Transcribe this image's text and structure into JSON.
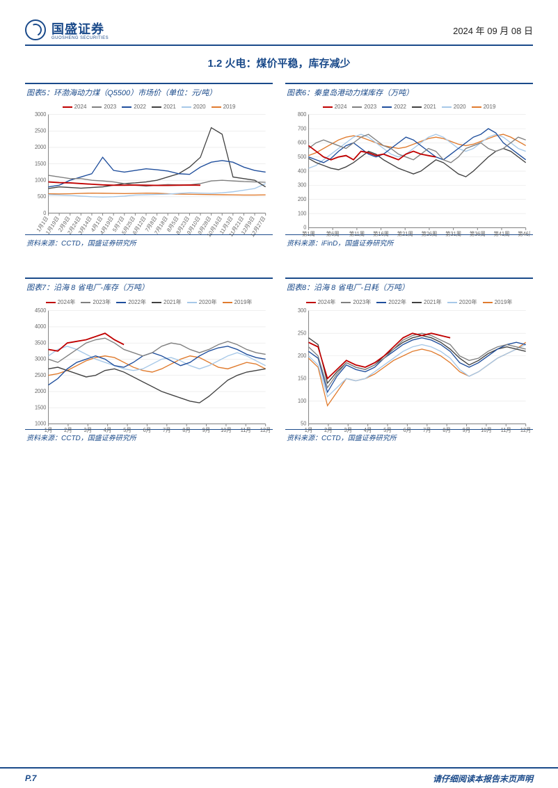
{
  "header": {
    "company_cn": "国盛证券",
    "company_en": "GUOSHENG SECURITIES",
    "date": "2024 年 09 月 08 日"
  },
  "section_title": "1.2 火电：煤价平稳，库存减少",
  "legend_years": [
    "2024",
    "2023",
    "2022",
    "2021",
    "2020",
    "2019"
  ],
  "legend_years_suffixed": [
    "2024年",
    "2023年",
    "2022年",
    "2021年",
    "2020年",
    "2019年"
  ],
  "series_colors": {
    "2024": "#c00000",
    "2023": "#7f7f7f",
    "2022": "#1f4e9c",
    "2021": "#404040",
    "2020": "#a6c8e8",
    "2019": "#e07b2e"
  },
  "charts": [
    {
      "id": "chart5",
      "title": "图表5：环渤海动力煤（Q5500）市场价（单位：元/吨）",
      "source": "资料来源：CCTD，国盛证券研究所",
      "type": "line",
      "ylim": [
        0,
        3000
      ],
      "ytick_step": 500,
      "x_labels": [
        "1月1日",
        "1月19日",
        "2月9日",
        "2月24日",
        "3月14日",
        "4月1日",
        "4月19日",
        "5月7日",
        "5月25日",
        "6月12日",
        "7月8日",
        "7月18日",
        "8月5日",
        "8月23日",
        "9月10日",
        "9月28日",
        "10月16日",
        "11月3日",
        "11月21日",
        "12月9日",
        "12月27日"
      ],
      "rotate_x": true,
      "series": {
        "2024": [
          950,
          930,
          920,
          900,
          880,
          860,
          850,
          850,
          855,
          850,
          845,
          845,
          850,
          855,
          850,
          null,
          null,
          null,
          null,
          null,
          null
        ],
        "2023": [
          1150,
          1100,
          1050,
          1050,
          1000,
          980,
          950,
          900,
          850,
          820,
          850,
          870,
          860,
          860,
          900,
          980,
          1000,
          980,
          960,
          950,
          940
        ],
        "2022": [
          800,
          850,
          1000,
          1100,
          1200,
          1700,
          1300,
          1250,
          1300,
          1350,
          1320,
          1280,
          1200,
          1180,
          1400,
          1550,
          1600,
          1550,
          1400,
          1300,
          1250
        ],
        "2021": [
          750,
          800,
          780,
          760,
          780,
          800,
          850,
          900,
          920,
          950,
          1000,
          1100,
          1200,
          1400,
          1700,
          2600,
          2400,
          1100,
          1050,
          1000,
          800
        ],
        "2020": [
          560,
          550,
          540,
          520,
          500,
          490,
          500,
          520,
          550,
          560,
          570,
          580,
          600,
          620,
          610,
          600,
          620,
          650,
          700,
          750,
          900
        ],
        "2019": [
          590,
          585,
          590,
          600,
          610,
          605,
          600,
          595,
          600,
          610,
          605,
          590,
          580,
          575,
          570,
          565,
          560,
          555,
          550,
          550,
          555
        ]
      }
    },
    {
      "id": "chart6",
      "title": "图表6：秦皇岛港动力煤库存（万吨）",
      "source": "资料来源：iFinD，国盛证券研究所",
      "type": "line",
      "ylim": [
        0,
        800
      ],
      "ytick_step": 100,
      "x_labels": [
        "第1周",
        "第6周",
        "第11周",
        "第16周",
        "第21周",
        "第26周",
        "第31周",
        "第36周",
        "第41周",
        "第46周"
      ],
      "rotate_x": false,
      "series": {
        "2024": [
          580,
          540,
          500,
          480,
          500,
          510,
          480,
          540,
          530,
          510,
          520,
          500,
          480,
          520,
          540,
          520,
          510,
          500,
          null,
          null,
          null,
          null,
          null,
          null,
          null,
          null,
          null,
          null,
          null,
          null
        ],
        "2023": [
          560,
          600,
          620,
          600,
          580,
          560,
          600,
          640,
          660,
          620,
          580,
          560,
          520,
          500,
          480,
          520,
          560,
          540,
          480,
          460,
          500,
          560,
          580,
          600,
          560,
          540,
          560,
          600,
          640,
          620
        ],
        "2022": [
          500,
          480,
          460,
          490,
          540,
          580,
          600,
          560,
          520,
          500,
          520,
          560,
          600,
          640,
          620,
          580,
          540,
          500,
          480,
          520,
          560,
          600,
          640,
          660,
          700,
          670,
          600,
          560,
          520,
          480
        ],
        "2021": [
          490,
          460,
          440,
          420,
          410,
          430,
          460,
          500,
          540,
          520,
          480,
          450,
          420,
          400,
          380,
          400,
          440,
          480,
          460,
          420,
          380,
          360,
          400,
          450,
          500,
          540,
          560,
          540,
          500,
          460
        ],
        "2020": [
          420,
          440,
          480,
          520,
          560,
          600,
          640,
          660,
          640,
          600,
          560,
          520,
          500,
          520,
          560,
          600,
          640,
          660,
          640,
          600,
          560,
          540,
          560,
          600,
          640,
          660,
          640,
          600,
          560,
          540
        ],
        "2019": [
          510,
          530,
          560,
          590,
          620,
          640,
          650,
          640,
          620,
          600,
          580,
          570,
          560,
          570,
          590,
          610,
          630,
          640,
          630,
          610,
          590,
          580,
          590,
          610,
          630,
          650,
          660,
          640,
          610,
          580
        ]
      }
    },
    {
      "id": "chart7",
      "title": "图表7：沿海 8 省电厂-库存（万吨）",
      "source": "资料来源：CCTD，国盛证券研究所",
      "type": "line",
      "ylim": [
        1000,
        4500
      ],
      "ytick_step": 500,
      "x_labels": [
        "1月",
        "2月",
        "3月",
        "4月",
        "5月",
        "6月",
        "7月",
        "8月",
        "9月",
        "10月",
        "11月",
        "12月"
      ],
      "rotate_x": false,
      "series": {
        "2024年": [
          3300,
          3250,
          3500,
          3550,
          3600,
          3700,
          3800,
          3600,
          3450,
          null,
          null,
          null,
          null,
          null,
          null,
          null,
          null,
          null,
          null,
          null,
          null,
          null,
          null,
          null
        ],
        "2023年": [
          3000,
          2900,
          3100,
          3300,
          3500,
          3600,
          3650,
          3500,
          3300,
          3200,
          3100,
          3200,
          3400,
          3500,
          3450,
          3300,
          3200,
          3300,
          3450,
          3550,
          3450,
          3300,
          3200,
          3150
        ],
        "2022年": [
          2200,
          2400,
          2700,
          2900,
          3000,
          3100,
          3000,
          2800,
          2750,
          2900,
          3100,
          3200,
          3100,
          2950,
          2800,
          2900,
          3100,
          3250,
          3350,
          3400,
          3300,
          3150,
          3050,
          3000
        ],
        "2021年": [
          2700,
          2750,
          2650,
          2550,
          2450,
          2500,
          2650,
          2700,
          2600,
          2450,
          2300,
          2150,
          2000,
          1900,
          1800,
          1700,
          1650,
          1850,
          2100,
          2350,
          2500,
          2600,
          2650,
          2700
        ],
        "2020年": [
          3100,
          3300,
          3400,
          3300,
          3150,
          3000,
          2900,
          2800,
          2700,
          2650,
          2700,
          2850,
          3000,
          3050,
          2950,
          2800,
          2700,
          2800,
          2950,
          3100,
          3200,
          3100,
          2950,
          2800
        ],
        "2019年": [
          2500,
          2550,
          2650,
          2800,
          2950,
          3050,
          3100,
          3050,
          2900,
          2750,
          2650,
          2600,
          2700,
          2850,
          3000,
          3100,
          3050,
          2900,
          2750,
          2700,
          2800,
          2900,
          2850,
          2700
        ]
      }
    },
    {
      "id": "chart8",
      "title": "图表8：沿海 8 省电厂-日耗（万吨）",
      "source": "资料来源：CCTD，国盛证券研究所",
      "type": "line",
      "ylim": [
        50,
        300
      ],
      "ytick_step": 50,
      "x_labels": [
        "1月",
        "2月",
        "3月",
        "4月",
        "5月",
        "6月",
        "7月",
        "8月",
        "9月",
        "10月",
        "11月",
        "12月"
      ],
      "rotate_x": false,
      "series": {
        "2024年": [
          230,
          220,
          150,
          170,
          190,
          180,
          175,
          185,
          200,
          220,
          240,
          250,
          245,
          250,
          245,
          240,
          null,
          null,
          null,
          null,
          null,
          null,
          null,
          null
        ],
        "2023年": [
          220,
          200,
          130,
          160,
          185,
          175,
          170,
          180,
          195,
          215,
          235,
          245,
          250,
          245,
          235,
          225,
          200,
          190,
          195,
          210,
          220,
          225,
          220,
          215
        ],
        "2022年": [
          210,
          195,
          120,
          155,
          180,
          170,
          165,
          175,
          195,
          210,
          225,
          235,
          240,
          235,
          225,
          210,
          185,
          175,
          185,
          200,
          215,
          225,
          230,
          225
        ],
        "2021年": [
          240,
          225,
          140,
          165,
          185,
          175,
          170,
          180,
          200,
          215,
          230,
          240,
          245,
          240,
          230,
          215,
          195,
          180,
          190,
          205,
          215,
          220,
          215,
          210
        ],
        "2020年": [
          200,
          180,
          110,
          130,
          150,
          145,
          150,
          165,
          180,
          195,
          210,
          220,
          225,
          220,
          210,
          195,
          170,
          155,
          165,
          180,
          195,
          205,
          215,
          225
        ],
        "2019年": [
          195,
          175,
          90,
          120,
          150,
          145,
          150,
          160,
          175,
          190,
          200,
          210,
          215,
          210,
          200,
          185,
          165,
          155,
          165,
          180,
          195,
          205,
          215,
          230
        ]
      }
    }
  ],
  "footer": {
    "page": "P.7",
    "disclaimer": "请仔细阅读本报告末页声明"
  }
}
